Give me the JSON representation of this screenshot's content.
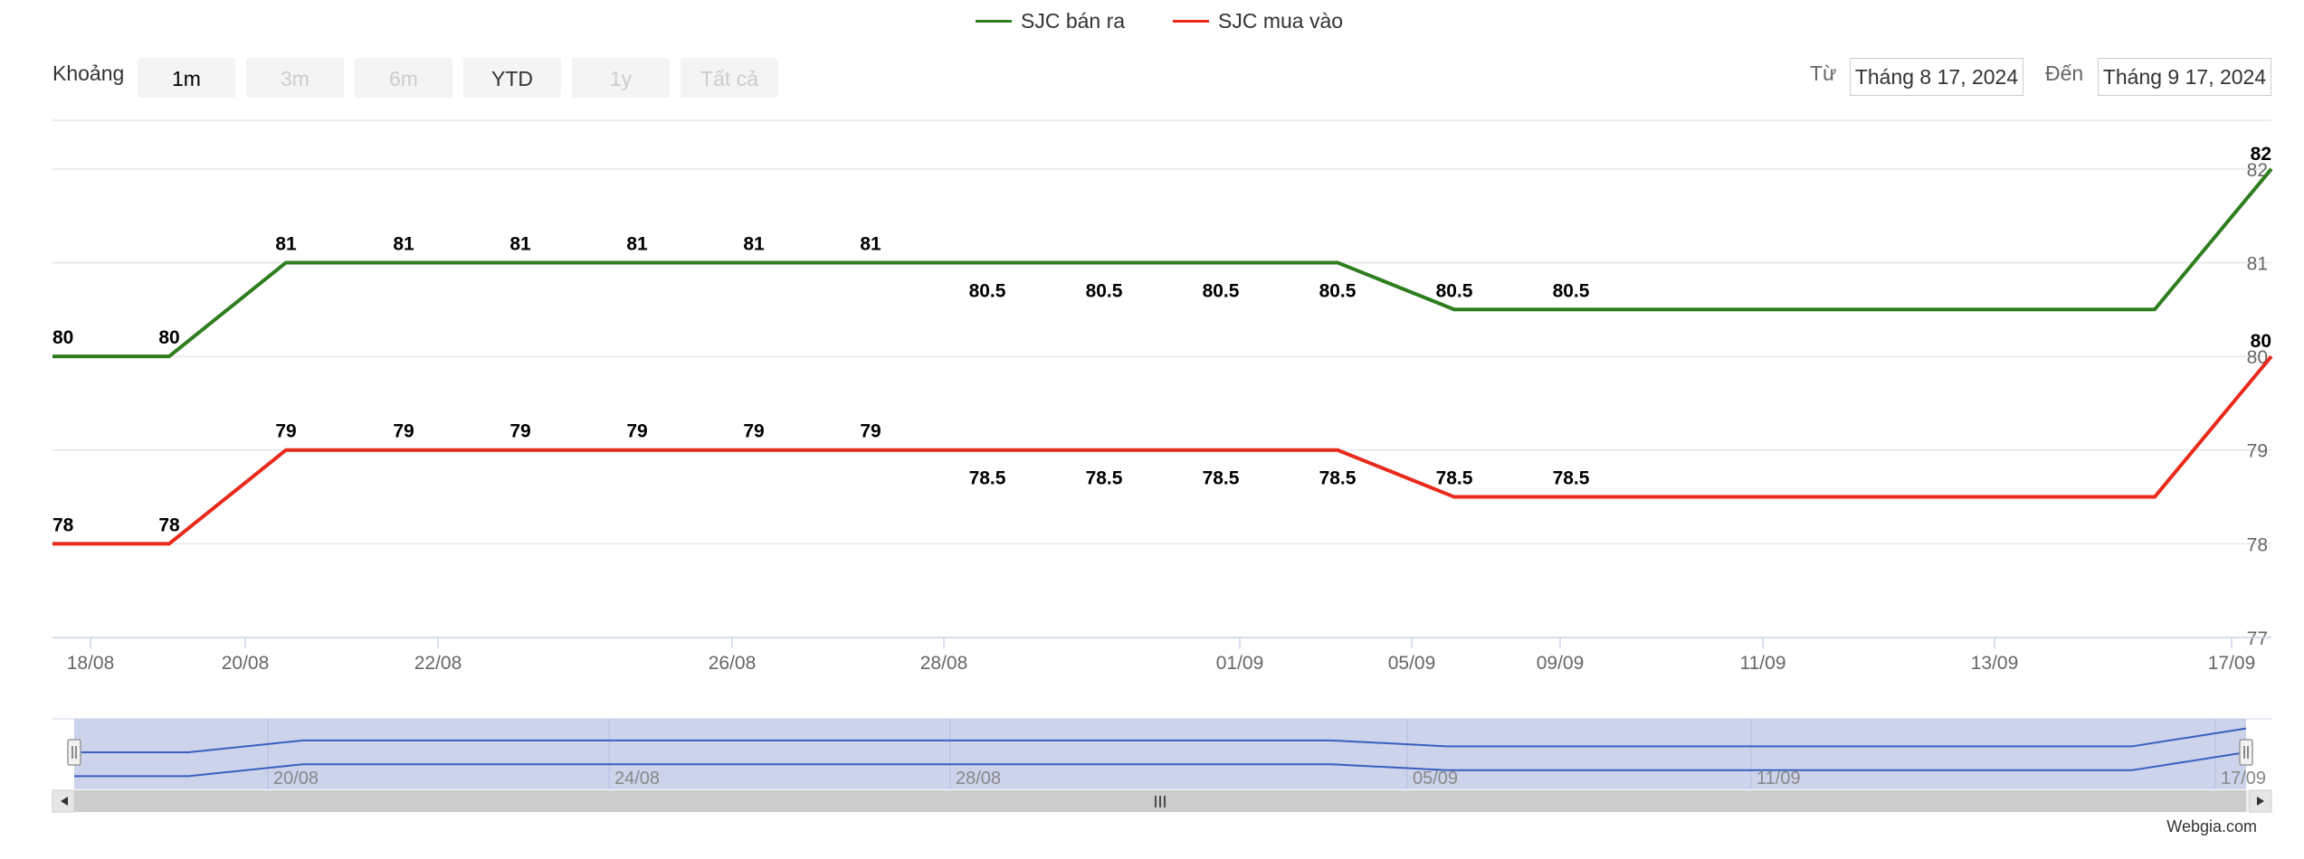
{
  "legend": [
    {
      "label": "SJC bán ra",
      "color": "#2e7d1e"
    },
    {
      "label": "SJC mua vào",
      "color": "#e8291c"
    }
  ],
  "range_selector": {
    "label": "Khoảng",
    "buttons": [
      {
        "label": "1m",
        "state": "enabled"
      },
      {
        "label": "3m",
        "state": "disabled"
      },
      {
        "label": "6m",
        "state": "disabled"
      },
      {
        "label": "YTD",
        "state": "enabled"
      },
      {
        "label": "1y",
        "state": "disabled"
      },
      {
        "label": "Tất cả",
        "state": "disabled"
      }
    ]
  },
  "date_range": {
    "from_label": "Từ",
    "from_value": "Tháng 8 17, 2024",
    "to_label": "Đến",
    "to_value": "Tháng 9 17, 2024"
  },
  "credit": "Webgia.com",
  "chart_data": {
    "type": "line",
    "x": [
      "17/08",
      "19/08",
      "21/08",
      "22/08",
      "23/08",
      "24/08",
      "25/08",
      "26/08",
      "27/08",
      "28/08",
      "29/08",
      "01/09",
      "04/09",
      "06/09",
      "08/09",
      "09/09",
      "10/09",
      "11/09",
      "12/09",
      "13/09",
      "14/09",
      "15/09",
      "16/09",
      "17/09"
    ],
    "series": [
      {
        "name": "SJC bán ra",
        "color": "#2e7d1e",
        "values": [
          80,
          80,
          81,
          81,
          81,
          81,
          81,
          81,
          81,
          81,
          81,
          81,
          81,
          80.5,
          80.5,
          80.5,
          80.5,
          80.5,
          80.5,
          80.5,
          80.5,
          80.5,
          80.5,
          82
        ],
        "labeled": [
          true,
          true,
          true,
          false,
          true,
          false,
          true,
          false,
          true,
          false,
          true,
          false,
          true,
          true,
          false,
          true,
          false,
          true,
          false,
          true,
          false,
          true,
          true,
          true
        ]
      },
      {
        "name": "SJC mua vào",
        "color": "#e8291c",
        "values": [
          78,
          78,
          79,
          79,
          79,
          79,
          79,
          79,
          79,
          79,
          79,
          79,
          79,
          78.5,
          78.5,
          78.5,
          78.5,
          78.5,
          78.5,
          78.5,
          78.5,
          78.5,
          78.5,
          80
        ],
        "labeled": [
          true,
          true,
          true,
          false,
          true,
          false,
          true,
          false,
          true,
          false,
          true,
          false,
          true,
          true,
          false,
          true,
          false,
          true,
          false,
          true,
          false,
          true,
          true,
          true
        ]
      }
    ],
    "x_tick_labels": [
      "18/08",
      "20/08",
      "22/08",
      "26/08",
      "28/08",
      "01/09",
      "05/09",
      "09/09",
      "11/09",
      "13/09",
      "17/09"
    ],
    "y_tick_labels": [
      "77",
      "78",
      "79",
      "80",
      "81",
      "82"
    ],
    "ylim": [
      77,
      82.5
    ],
    "grid": true,
    "navigator": {
      "tick_labels": [
        "20/08",
        "24/08",
        "28/08",
        "05/09",
        "11/09",
        "17/09"
      ],
      "scrollbar_grip": "III"
    }
  }
}
